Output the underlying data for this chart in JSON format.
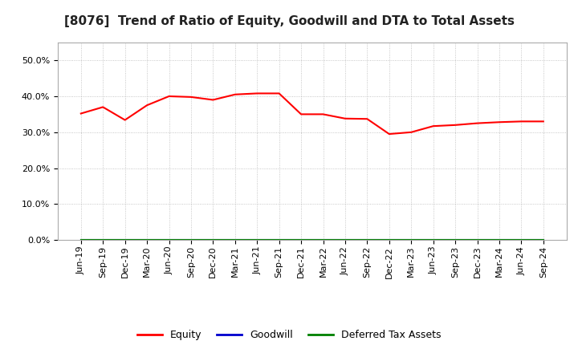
{
  "title": "[8076]  Trend of Ratio of Equity, Goodwill and DTA to Total Assets",
  "x_labels": [
    "Jun-19",
    "Sep-19",
    "Dec-19",
    "Mar-20",
    "Jun-20",
    "Sep-20",
    "Dec-20",
    "Mar-21",
    "Jun-21",
    "Sep-21",
    "Dec-21",
    "Mar-22",
    "Jun-22",
    "Sep-22",
    "Dec-22",
    "Mar-23",
    "Jun-23",
    "Sep-23",
    "Dec-23",
    "Mar-24",
    "Jun-24",
    "Sep-24"
  ],
  "equity": [
    0.352,
    0.37,
    0.334,
    0.375,
    0.4,
    0.398,
    0.39,
    0.405,
    0.408,
    0.408,
    0.35,
    0.35,
    0.338,
    0.337,
    0.295,
    0.3,
    0.317,
    0.32,
    0.325,
    0.328,
    0.33,
    0.33
  ],
  "goodwill": [
    0,
    0,
    0,
    0,
    0,
    0,
    0,
    0,
    0,
    0,
    0,
    0,
    0,
    0,
    0,
    0,
    0,
    0,
    0,
    0,
    0,
    0
  ],
  "dta": [
    0,
    0,
    0,
    0,
    0,
    0,
    0,
    0,
    0,
    0,
    0,
    0,
    0,
    0,
    0,
    0,
    0,
    0,
    0,
    0,
    0,
    0
  ],
  "equity_color": "#FF0000",
  "goodwill_color": "#0000CD",
  "dta_color": "#008000",
  "ylim": [
    0.0,
    0.55
  ],
  "yticks": [
    0.0,
    0.1,
    0.2,
    0.3,
    0.4,
    0.5
  ],
  "background_color": "#FFFFFF",
  "plot_bg_color": "#FFFFFF",
  "grid_color": "#999999",
  "legend_labels": [
    "Equity",
    "Goodwill",
    "Deferred Tax Assets"
  ],
  "title_fontsize": 11,
  "tick_fontsize": 8,
  "legend_fontsize": 9
}
